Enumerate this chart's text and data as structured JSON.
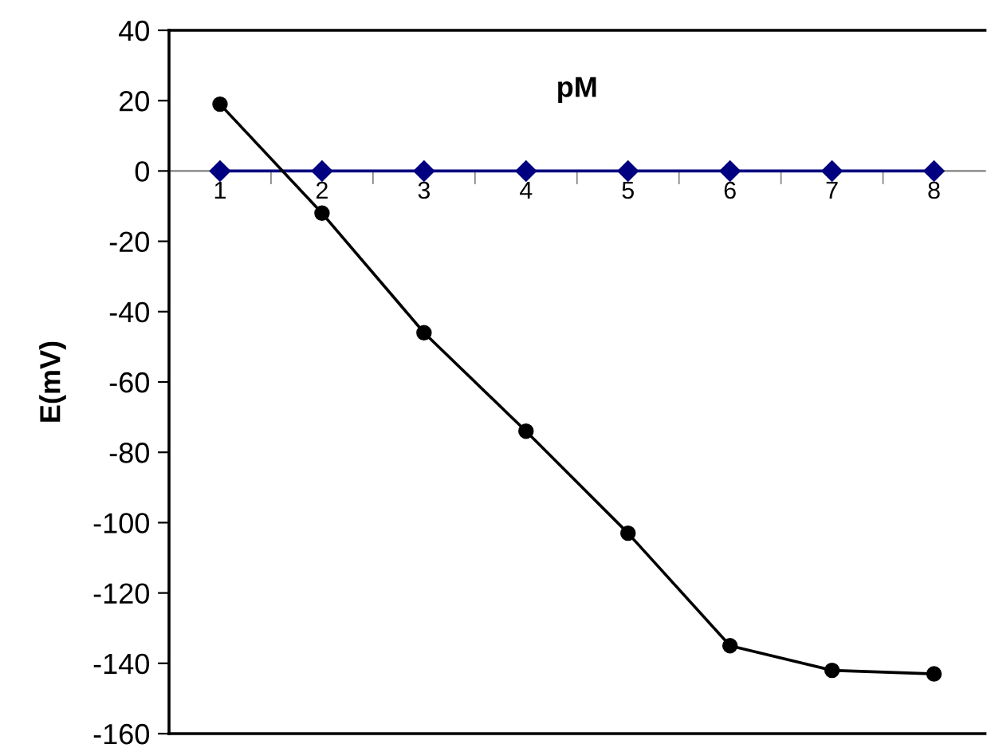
{
  "chart_data": {
    "type": "line",
    "xlabel": "pM",
    "ylabel": "E(mV)",
    "categories": [
      "1",
      "2",
      "3",
      "4",
      "5",
      "6",
      "7",
      "8"
    ],
    "series": [
      {
        "color": "#000080",
        "marker": "diamond",
        "values": [
          0,
          0,
          0,
          0,
          0,
          0,
          0,
          0
        ]
      },
      {
        "color": "#000000",
        "marker": "circle",
        "values": [
          19,
          -12,
          -46,
          -74,
          -103,
          -135,
          -142,
          -143
        ]
      }
    ],
    "ylim": [
      -160,
      40
    ],
    "yticks": [
      -160,
      -140,
      -120,
      -100,
      -80,
      -60,
      -40,
      -20,
      0,
      20,
      40
    ],
    "grid": false,
    "legend": false
  }
}
